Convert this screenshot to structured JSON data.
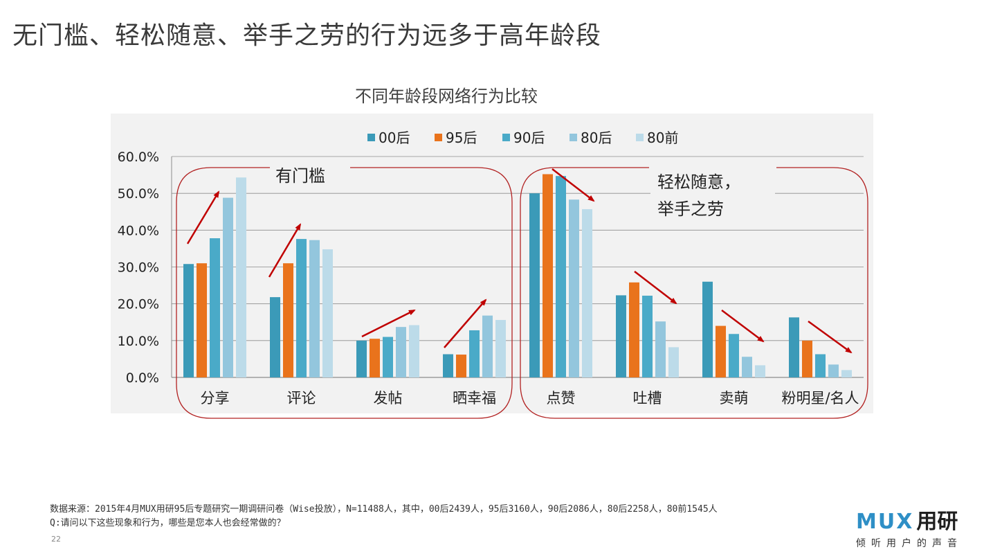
{
  "slide": {
    "title": "无门槛、轻松随意、举手之劳的行为远多于高年龄段",
    "page_number": "22"
  },
  "chart_data": {
    "type": "bar",
    "title": "不同年龄段网络行为比较",
    "categories": [
      "分享",
      "评论",
      "发帖",
      "晒幸福",
      "点赞",
      "吐槽",
      "卖萌",
      "粉明星/名人"
    ],
    "series": [
      {
        "name": "00后",
        "color": "#3b9ab8",
        "values": [
          30.8,
          21.8,
          10.0,
          6.3,
          50.0,
          22.3,
          26.0,
          16.3
        ]
      },
      {
        "name": "95后",
        "color": "#e9731c",
        "values": [
          31.0,
          31.0,
          10.5,
          6.2,
          55.2,
          25.8,
          14.0,
          10.0
        ]
      },
      {
        "name": "90后",
        "color": "#4aaac8",
        "values": [
          37.8,
          37.6,
          11.0,
          12.8,
          54.7,
          22.2,
          11.8,
          6.3
        ]
      },
      {
        "name": "80后",
        "color": "#93c6dd",
        "values": [
          48.8,
          37.3,
          13.7,
          16.8,
          48.3,
          15.2,
          5.6,
          3.5
        ]
      },
      {
        "name": "80前",
        "color": "#bcdbe9",
        "values": [
          54.3,
          34.8,
          14.2,
          15.6,
          45.7,
          8.2,
          3.3,
          2.0
        ]
      }
    ],
    "ylim": [
      0,
      60
    ],
    "yticks": [
      "0.0%",
      "10.0%",
      "20.0%",
      "30.0%",
      "40.0%",
      "50.0%",
      "60.0%"
    ],
    "legend_position": "top",
    "grid": true,
    "annotations": {
      "group1_label": "有门槛",
      "group2_label_line1": "轻松随意，",
      "group2_label_line2": "举手之劳"
    }
  },
  "footer": {
    "source": "数据来源：2015年4月MUX用研95后专题研究一期调研问卷（Wise投放），N=11488人，其中，00后2439人，95后3160人，90后2086人，80后2258人，80前1545人",
    "question": "Q:请问以下这些现象和行为，哪些是您本人也会经常做的？"
  },
  "logo": {
    "mark": "MUX",
    "text": "用研",
    "subtitle": "倾听用户的声音"
  }
}
